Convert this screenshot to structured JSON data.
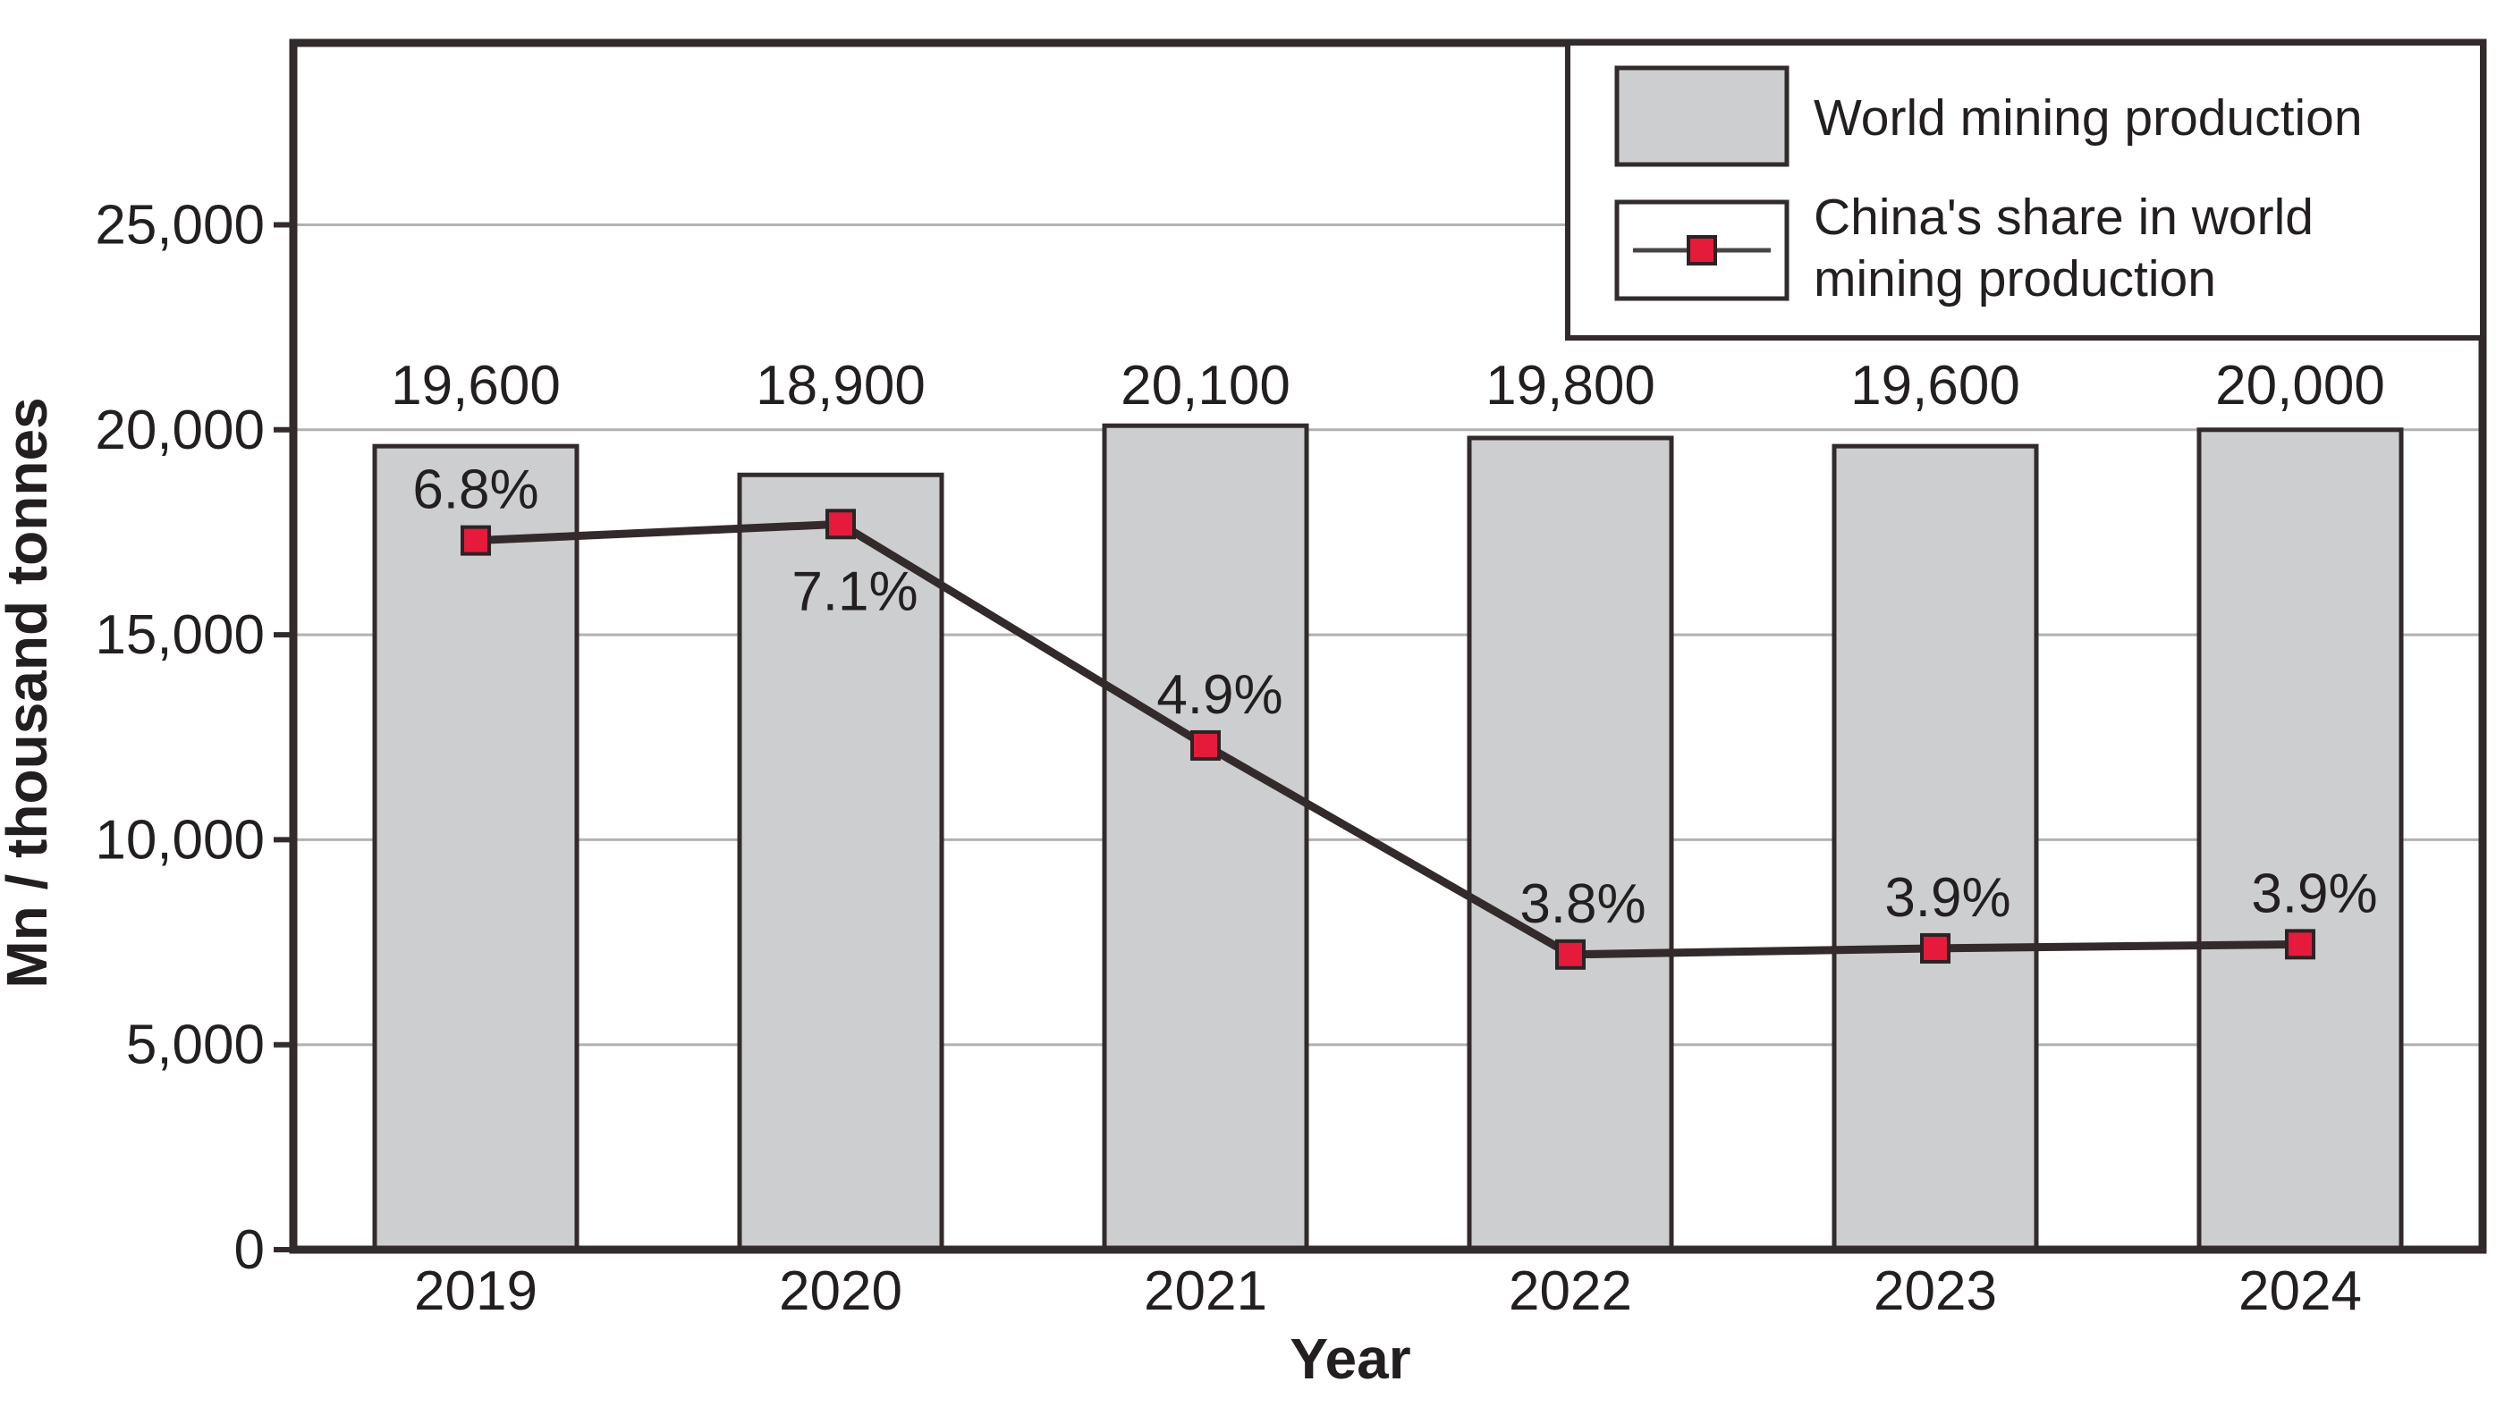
{
  "chart_data": {
    "type": "bar+line",
    "categories": [
      "2019",
      "2020",
      "2021",
      "2022",
      "2023",
      "2024"
    ],
    "series": [
      {
        "name": "World mining production",
        "type": "bar",
        "values": [
          19600,
          18900,
          20100,
          19800,
          19600,
          20000
        ],
        "value_labels": [
          "19,600",
          "18,900",
          "20,100",
          "19,800",
          "19,600",
          "20,000"
        ]
      },
      {
        "name": "China's share in world mining production",
        "type": "line",
        "unit": "%",
        "values": [
          6.8,
          7.1,
          4.9,
          3.8,
          3.9,
          3.9
        ],
        "value_labels": [
          "6.8%",
          "7.1%",
          "4.9%",
          "3.8%",
          "3.9%",
          "3.9%"
        ]
      }
    ],
    "title": "",
    "xlabel": "Year",
    "ylabel": "Mn / thousand tonnes",
    "ylim": [
      0,
      29400
    ],
    "yticks": {
      "values": [
        0,
        5000,
        10000,
        15000,
        20000,
        25000
      ],
      "labels": [
        "0",
        "5,000",
        "10,000",
        "15,000",
        "20,000",
        "25,000"
      ]
    },
    "grid": "horizontal",
    "legend": {
      "position": "top-right",
      "entries": [
        {
          "label": "World mining production",
          "lines": [
            "World mining production"
          ]
        },
        {
          "label": "China's share in world mining production",
          "lines": [
            "China's share in world",
            "mining production"
          ]
        }
      ]
    },
    "colors": {
      "bar_fill": "#cdcecf",
      "bar_border": "#332a2b",
      "line": "#332a2b",
      "legend_line": "#4a4446",
      "marker_fill": "#e61a3b",
      "marker_border": "#2a2425",
      "grid": "#b2b2b2",
      "axis": "#332a2b",
      "text": "#231f20",
      "background": "#ffffff"
    }
  }
}
